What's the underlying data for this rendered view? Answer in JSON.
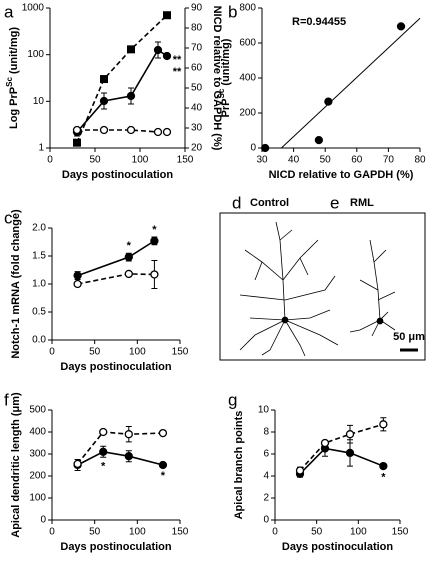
{
  "chart_data": [
    {
      "type": "line",
      "label": "a",
      "x_label": "Days postinoculation",
      "y_label": "Log PrP",
      "y_label_sup": "Sc",
      "y_label_end": " (unit/mg)",
      "y2_label": "NICD relative to GAPDH (%)",
      "yscale": "log",
      "xlim": [
        0,
        150
      ],
      "xticks": [
        0,
        50,
        100,
        150
      ],
      "ylim": [
        1,
        1000
      ],
      "yticks": [
        1,
        10,
        100,
        1000
      ],
      "y2lim": [
        20,
        90
      ],
      "y2ticks": [
        20,
        30,
        40,
        50,
        60,
        70,
        80,
        90
      ],
      "annotation_side": "right",
      "series": [
        {
          "color": "#000000",
          "marker": "square",
          "filled": true,
          "dashed": true,
          "axis": "y",
          "x": [
            30,
            60,
            90,
            130
          ],
          "values": [
            1.3,
            30,
            130,
            700
          ]
        },
        {
          "color": "#000000",
          "marker": "circle",
          "filled": true,
          "dashed": false,
          "axis": "y2",
          "x": [
            30,
            60,
            90,
            120,
            130
          ],
          "values": [
            28,
            43.5,
            46,
            69,
            66
          ],
          "errors": [
            2,
            4,
            4,
            4,
            1
          ]
        },
        {
          "color": "#000000",
          "marker": "circle",
          "filled": false,
          "dashed": true,
          "axis": "y2",
          "x": [
            30,
            60,
            90,
            120,
            130
          ],
          "values": [
            29,
            29,
            29,
            28,
            28
          ],
          "errors": [
            1,
            1,
            1,
            1,
            1
          ]
        }
      ],
      "annotations": [
        {
          "text": "**",
          "x": 130
        },
        {
          "text": "**",
          "x": 130
        }
      ]
    },
    {
      "type": "scatter",
      "label": "b",
      "x_label": "NICD relative to GAPDH (%)",
      "y_label": "PrP",
      "y_label_sup": "Sc",
      "y_label_end": " (unit/mg)",
      "note": "R=0.94455",
      "trendline": true,
      "xlim": [
        30,
        80
      ],
      "xticks": [
        30,
        40,
        50,
        60,
        70,
        80
      ],
      "ylim": [
        0,
        800
      ],
      "yticks": [
        0,
        200,
        400,
        600,
        800
      ],
      "series": [
        {
          "color": "#000000",
          "marker": "circle",
          "filled": true,
          "x": [
            31,
            48,
            51,
            74
          ],
          "values": [
            0,
            45,
            265,
            695
          ]
        }
      ]
    },
    {
      "type": "line",
      "label": "c",
      "x_label": "Days postinoculation",
      "y_label": "Notch-1 mRNA (fold change)",
      "xlim": [
        0,
        150
      ],
      "xticks": [
        0,
        50,
        100,
        150
      ],
      "ylim": [
        0,
        2
      ],
      "yticks": [
        {
          "value": 0,
          "label": "0.0"
        },
        {
          "value": 0.5,
          "label": "0.5"
        },
        {
          "value": 1,
          "label": "1.0"
        },
        {
          "value": 1.5,
          "label": "1.5"
        },
        {
          "value": 2,
          "label": "2.0"
        }
      ],
      "annotation_side": "above",
      "series": [
        {
          "color": "#000000",
          "marker": "circle",
          "filled": true,
          "dashed": false,
          "x": [
            30,
            90,
            120
          ],
          "values": [
            1.15,
            1.48,
            1.77
          ],
          "errors": [
            0.07,
            0.07,
            0.07
          ]
        },
        {
          "color": "#000000",
          "marker": "circle",
          "filled": false,
          "dashed": true,
          "x": [
            30,
            90,
            120
          ],
          "values": [
            1.0,
            1.18,
            1.17
          ],
          "errors": [
            0.03,
            0.03,
            0.25
          ]
        }
      ],
      "annotations": [
        {
          "text": "*",
          "x": 90
        },
        {
          "text": "*",
          "x": 120
        }
      ]
    },
    {
      "type": "line",
      "label": "f",
      "x_label": "Days postinoculation",
      "y_label": "Apical dendritic length (μm)",
      "xlim": [
        0,
        150
      ],
      "xticks": [
        0,
        50,
        100,
        150
      ],
      "ylim": [
        0,
        500
      ],
      "yticks": [
        0,
        100,
        200,
        300,
        400,
        500
      ],
      "annotation_side": "below",
      "series": [
        {
          "color": "#000000",
          "marker": "circle",
          "filled": true,
          "dashed": false,
          "x": [
            30,
            60,
            90,
            130
          ],
          "values": [
            250,
            310,
            290,
            250
          ],
          "errors": [
            25,
            25,
            25,
            8
          ]
        },
        {
          "color": "#000000",
          "marker": "circle",
          "filled": false,
          "dashed": true,
          "x": [
            30,
            60,
            90,
            130
          ],
          "values": [
            255,
            400,
            390,
            395
          ],
          "errors": [
            10,
            10,
            35,
            5
          ]
        }
      ],
      "annotations": [
        {
          "text": "*",
          "x": 60
        },
        {
          "text": "*",
          "x": 130
        }
      ]
    },
    {
      "type": "line",
      "label": "g",
      "x_label": "Days postinoculation",
      "y_label": "Apical branch points",
      "xlim": [
        0,
        150
      ],
      "xticks": [
        0,
        50,
        100,
        150
      ],
      "ylim": [
        0,
        10
      ],
      "yticks": [
        0,
        2,
        4,
        6,
        8,
        10
      ],
      "annotation_side": "below",
      "series": [
        {
          "color": "#000000",
          "marker": "circle",
          "filled": true,
          "dashed": false,
          "x": [
            30,
            60,
            90,
            130
          ],
          "values": [
            4.2,
            6.5,
            6.1,
            4.9
          ],
          "errors": [
            0.3,
            0.7,
            1.2,
            0.2
          ]
        },
        {
          "color": "#000000",
          "marker": "circle",
          "filled": false,
          "dashed": true,
          "x": [
            30,
            60,
            90,
            130
          ],
          "values": [
            4.5,
            7.0,
            7.8,
            8.7
          ],
          "errors": [
            0.3,
            0.2,
            0.8,
            0.6
          ]
        }
      ],
      "annotations": [
        {
          "text": "*",
          "x": 130
        }
      ]
    }
  ],
  "neuron_panel": {
    "labels": [
      "d",
      "e"
    ],
    "captions": [
      "Control",
      "RML"
    ],
    "scale_bar": "50 μm"
  }
}
